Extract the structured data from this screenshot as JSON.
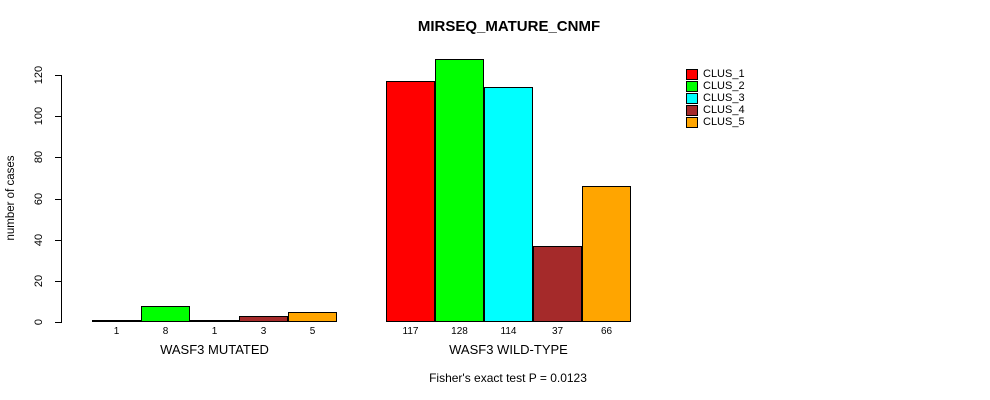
{
  "chart_data": {
    "type": "bar",
    "title": "MIRSEQ_MATURE_CNMF",
    "ylabel": "number of cases",
    "xlabel": "",
    "annotation": "Fisher's exact test P = 0.0123",
    "categories": [
      "WASF3 MUTATED",
      "WASF3 WILD-TYPE"
    ],
    "series": [
      {
        "name": "CLUS_1",
        "color": "#FF0000",
        "values": [
          1,
          117
        ]
      },
      {
        "name": "CLUS_2",
        "color": "#00FF00",
        "values": [
          8,
          128
        ]
      },
      {
        "name": "CLUS_3",
        "color": "#00FFFF",
        "values": [
          1,
          114
        ]
      },
      {
        "name": "CLUS_4",
        "color": "#A52A2A",
        "values": [
          3,
          37
        ]
      },
      {
        "name": "CLUS_5",
        "color": "#FFA500",
        "values": [
          5,
          66
        ]
      }
    ],
    "bar_value_labels": [
      [
        1,
        8,
        1,
        3,
        5
      ],
      [
        117,
        128,
        114,
        37,
        66
      ]
    ],
    "yticks": [
      0,
      20,
      40,
      60,
      80,
      100,
      120
    ],
    "ylim": [
      0,
      130
    ],
    "grid": false,
    "legend_position": "top-right",
    "legend_entries": [
      "CLUS_1",
      "CLUS_2",
      "CLUS_3",
      "CLUS_4",
      "CLUS_5"
    ]
  }
}
